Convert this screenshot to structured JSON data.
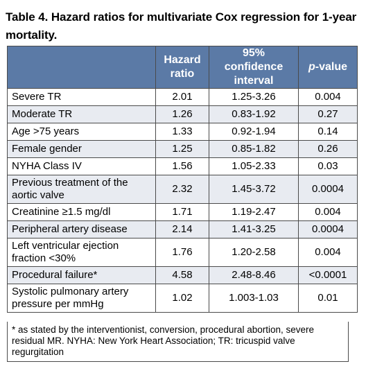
{
  "title": "Table 4. Hazard ratios for multivariate Cox regression for 1-year mortality.",
  "headers": {
    "variable": "",
    "hazard_ratio": "Hazard ratio",
    "ci": "95% confidence interval",
    "p_italic": "p",
    "p_rest": "-value"
  },
  "rows": [
    {
      "variable": "Severe TR",
      "hr": "2.01",
      "ci": "1.25-3.26",
      "p": "0.004"
    },
    {
      "variable": "Moderate TR",
      "hr": "1.26",
      "ci": "0.83-1.92",
      "p": "0.27"
    },
    {
      "variable": "Age >75 years",
      "hr": "1.33",
      "ci": "0.92-1.94",
      "p": "0.14"
    },
    {
      "variable": "Female gender",
      "hr": "1.25",
      "ci": "0.85-1.82",
      "p": "0.26"
    },
    {
      "variable": "NYHA Class IV",
      "hr": "1.56",
      "ci": "1.05-2.33",
      "p": "0.03"
    },
    {
      "variable": "Previous treatment of the aortic valve",
      "hr": "2.32",
      "ci": "1.45-3.72",
      "p": "0.0004"
    },
    {
      "variable": "Creatinine ≥1.5 mg/dl",
      "hr": "1.71",
      "ci": "1.19-2.47",
      "p": "0.004"
    },
    {
      "variable": "Peripheral artery disease",
      "hr": "2.14",
      "ci": "1.41-3.25",
      "p": "0.0004"
    },
    {
      "variable": "Left ventricular ejection fraction <30%",
      "hr": "1.76",
      "ci": "1.20-2.58",
      "p": "0.004"
    },
    {
      "variable": "Procedural failure*",
      "hr": "4.58",
      "ci": "2.48-8.46",
      "p": "<0.0001"
    },
    {
      "variable": "Systolic pulmonary artery pressure per mmHg",
      "hr": "1.02",
      "ci": "1.003-1.03",
      "p": "0.01"
    }
  ],
  "footnote": "* as stated by the interventionist, conversion, procedural abortion, severe residual MR. NYHA: New York Heart Association; TR: tricuspid valve regurgitation",
  "colors": {
    "header_bg": "#5b7aa6",
    "row_alt_bg": "#e8ebf1"
  }
}
